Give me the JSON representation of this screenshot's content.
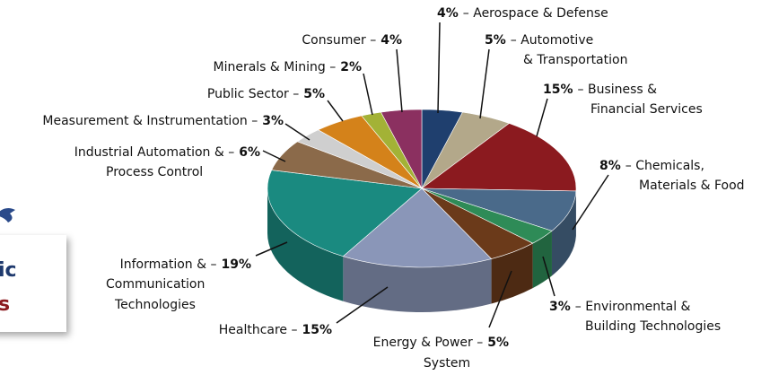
{
  "card": {
    "lines": [
      "ic",
      "s"
    ]
  },
  "chart_data": {
    "type": "pie",
    "categories": [
      [
        "– Aerospace & Defense"
      ],
      [
        "– Automotive",
        "& Transportation"
      ],
      [
        "– Business &",
        "Financial Services"
      ],
      [
        "– Chemicals,",
        "Materials & Food"
      ],
      [
        "– Environmental &",
        "Building Technologies"
      ],
      [
        "Energy & Power –",
        "System"
      ],
      [
        "Healthcare –"
      ],
      [
        "Information & –",
        "Communication",
        "Technologies"
      ],
      [
        "Industrial Automation & –",
        "Process Control"
      ],
      [
        "Measurement & Instrumentation –"
      ],
      [
        "Public Sector –"
      ],
      [
        "Minerals & Mining –"
      ],
      [
        "Consumer –"
      ]
    ],
    "values": [
      4,
      5,
      15,
      8,
      3,
      5,
      15,
      19,
      6,
      3,
      5,
      2,
      4
    ],
    "value_labels": [
      "4%",
      "5%",
      "15%",
      "8%",
      "3%",
      "5%",
      "15%",
      "19%",
      "6%",
      "3%",
      "5%",
      "2%",
      "4%"
    ],
    "colors": [
      "#1f3f6e",
      "#b3a88a",
      "#8b1a1f",
      "#4a6a8a",
      "#2e8b57",
      "#6b3a1a",
      "#8a96b8",
      "#1a8a80",
      "#8b6a4a",
      "#cfcfcf",
      "#d4821a",
      "#a3b236",
      "#8b3060"
    ]
  }
}
